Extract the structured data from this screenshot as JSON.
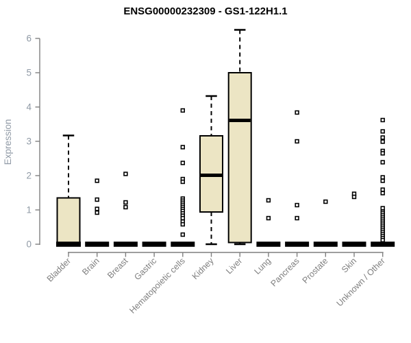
{
  "chart_data": {
    "type": "boxplot",
    "title": "ENSG00000232309 - GS1-122H1.1",
    "ylabel": "Expression",
    "xlabel": "",
    "ylim": [
      0,
      6.3
    ],
    "yticks": [
      0,
      1,
      2,
      3,
      4,
      5,
      6
    ],
    "grid": false,
    "legend": "none",
    "colors": {
      "box_fill": "#ece5c4",
      "box_stroke": "#000000",
      "whisker": "#000000",
      "zero_bar": "#000000",
      "axis_line": "#7f7f7f",
      "y_tick_label": "#8f99a5",
      "x_tick_label": "#7f7f7f",
      "title": "#000000",
      "outlier_fill": "#ffffff",
      "outlier_stroke": "#000000"
    },
    "categories": [
      "Bladder",
      "Brain",
      "Breast",
      "Gastric",
      "Hematopoietic cells",
      "Kidney",
      "Liver",
      "Lung",
      "Pancreas",
      "Prostate",
      "Skin",
      "Unknown / Other"
    ],
    "groups": [
      {
        "name": "Bladder",
        "low": 0,
        "q1": 0,
        "median": 0,
        "q3": 1.35,
        "high": 3.17,
        "outliers": []
      },
      {
        "name": "Brain",
        "low": 0,
        "q1": 0,
        "median": 0,
        "q3": 0,
        "high": 0,
        "outliers": [
          1.85,
          1.3,
          1.03,
          0.92
        ]
      },
      {
        "name": "Breast",
        "low": 0,
        "q1": 0,
        "median": 0,
        "q3": 0,
        "high": 0,
        "outliers": [
          2.05,
          1.22,
          1.08
        ]
      },
      {
        "name": "Gastric",
        "low": 0,
        "q1": 0,
        "median": 0,
        "q3": 0,
        "high": 0,
        "outliers": []
      },
      {
        "name": "Hematopoietic cells",
        "low": 0,
        "q1": 0,
        "median": 0,
        "q3": 0,
        "high": 0,
        "outliers": [
          3.9,
          2.83,
          2.37,
          1.9,
          1.82,
          1.33,
          1.27,
          1.21,
          1.15,
          1.09,
          1.03,
          0.97,
          0.9,
          0.83,
          0.76,
          0.66,
          0.58,
          0.28
        ]
      },
      {
        "name": "Kidney",
        "low": 0,
        "q1": 0.94,
        "median": 2.01,
        "q3": 3.16,
        "high": 4.32,
        "outliers": []
      },
      {
        "name": "Liver",
        "low": 0,
        "q1": 0.05,
        "median": 3.61,
        "q3": 5.0,
        "high": 6.25,
        "outliers": []
      },
      {
        "name": "Lung",
        "low": 0,
        "q1": 0,
        "median": 0,
        "q3": 0,
        "high": 0,
        "outliers": [
          1.28,
          0.76
        ]
      },
      {
        "name": "Pancreas",
        "low": 0,
        "q1": 0,
        "median": 0,
        "q3": 0,
        "high": 0,
        "outliers": [
          3.84,
          3.0,
          1.14,
          0.76
        ]
      },
      {
        "name": "Prostate",
        "low": 0,
        "q1": 0,
        "median": 0,
        "q3": 0,
        "high": 0,
        "outliers": [
          1.24
        ]
      },
      {
        "name": "Skin",
        "low": 0,
        "q1": 0,
        "median": 0,
        "q3": 0,
        "high": 0,
        "outliers": [
          1.47,
          1.38
        ]
      },
      {
        "name": "Unknown / Other",
        "low": 0,
        "q1": 0,
        "median": 0,
        "q3": 0,
        "high": 0,
        "outliers": [
          3.62,
          3.29,
          3.11,
          2.99,
          2.72,
          2.65,
          2.39,
          1.95,
          1.85,
          1.59,
          1.49,
          1.05,
          0.95,
          0.9,
          0.84,
          0.78,
          0.72,
          0.66,
          0.6,
          0.54,
          0.48,
          0.42,
          0.36,
          0.3,
          0.24,
          0.18,
          0.12
        ]
      }
    ]
  }
}
